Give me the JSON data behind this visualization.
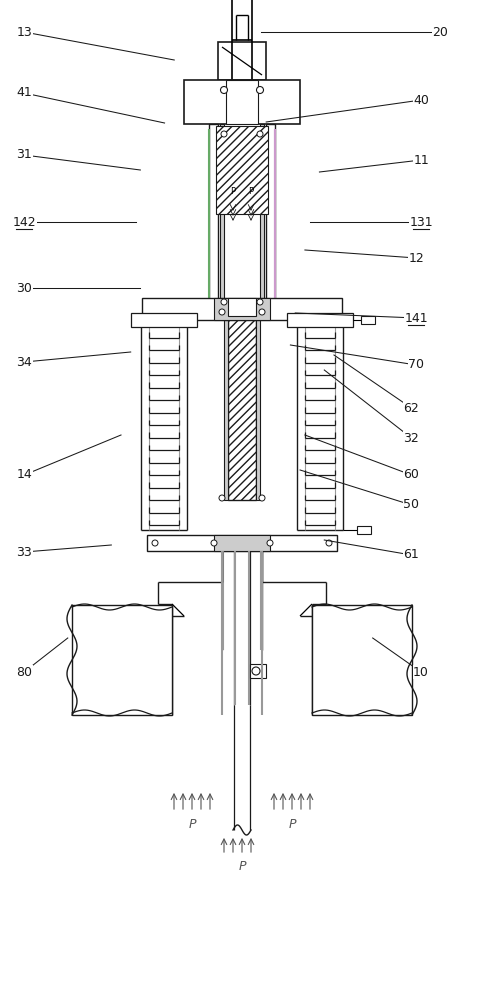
{
  "bg_color": "#ffffff",
  "line_color": "#1a1a1a",
  "gray_color": "#999999",
  "light_gray": "#cccccc",
  "purple_color": "#cc99cc",
  "green_color": "#66aa66",
  "label_color": "#1a1a1a",
  "fig_width": 4.84,
  "fig_height": 10.0,
  "labels": {
    "13": [
      0.05,
      0.968,
      0.36,
      0.94
    ],
    "20": [
      0.91,
      0.968,
      0.54,
      0.968
    ],
    "41": [
      0.05,
      0.907,
      0.34,
      0.877
    ],
    "40": [
      0.87,
      0.9,
      0.55,
      0.878
    ],
    "31": [
      0.05,
      0.845,
      0.29,
      0.83
    ],
    "11": [
      0.87,
      0.84,
      0.66,
      0.828
    ],
    "142": [
      0.05,
      0.778,
      0.28,
      0.778
    ],
    "131": [
      0.87,
      0.778,
      0.64,
      0.778
    ],
    "12": [
      0.86,
      0.742,
      0.63,
      0.75
    ],
    "30": [
      0.05,
      0.712,
      0.29,
      0.712
    ],
    "141": [
      0.86,
      0.682,
      0.61,
      0.687
    ],
    "34": [
      0.05,
      0.638,
      0.27,
      0.648
    ],
    "70": [
      0.86,
      0.635,
      0.6,
      0.655
    ],
    "62": [
      0.85,
      0.592,
      0.69,
      0.645
    ],
    "32": [
      0.85,
      0.562,
      0.67,
      0.63
    ],
    "14": [
      0.05,
      0.525,
      0.25,
      0.565
    ],
    "60": [
      0.85,
      0.525,
      0.63,
      0.565
    ],
    "50": [
      0.85,
      0.495,
      0.62,
      0.53
    ],
    "33": [
      0.05,
      0.448,
      0.23,
      0.455
    ],
    "61": [
      0.85,
      0.445,
      0.67,
      0.46
    ],
    "80": [
      0.05,
      0.328,
      0.14,
      0.362
    ],
    "10": [
      0.87,
      0.328,
      0.77,
      0.362
    ]
  },
  "underline_labels": [
    "131",
    "141",
    "142"
  ]
}
